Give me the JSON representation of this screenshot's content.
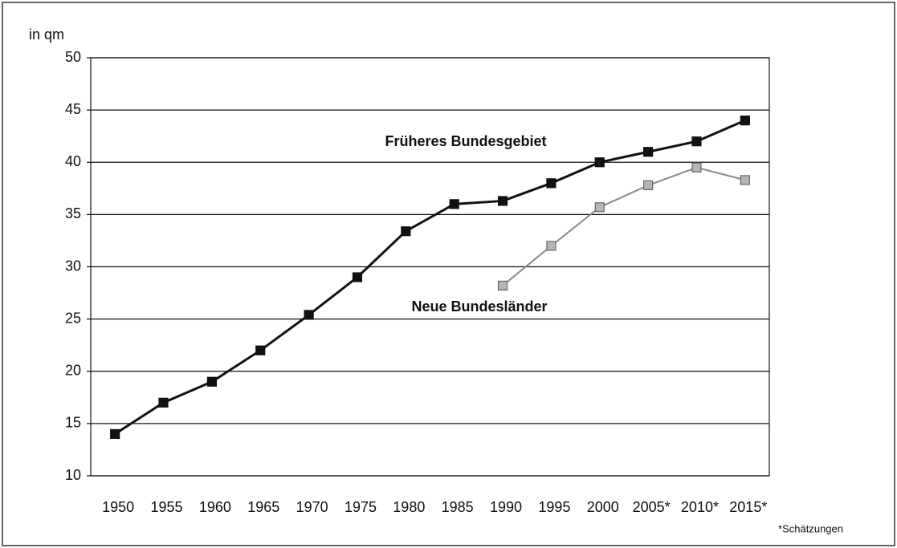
{
  "chart_data": {
    "type": "line",
    "y_label": "in qm",
    "categories": [
      "1950",
      "1955",
      "1960",
      "1965",
      "1970",
      "1975",
      "1980",
      "1985",
      "1990",
      "1995",
      "2000",
      "2005*",
      "2010*",
      "2015*"
    ],
    "series": [
      {
        "name": "Früheres Bundesgebiet",
        "color": "#111111",
        "values": [
          14,
          17,
          19,
          22,
          25.4,
          29,
          33.4,
          36,
          36.3,
          38,
          40,
          41,
          42,
          44
        ]
      },
      {
        "name": "Neue Bundesländer",
        "color": "#8a8a8a",
        "values": [
          null,
          null,
          null,
          null,
          null,
          null,
          null,
          null,
          28.2,
          32,
          35.7,
          37.8,
          39.5,
          38.3
        ]
      }
    ],
    "ylim": [
      10,
      50
    ],
    "yticks": [
      10,
      15,
      20,
      25,
      30,
      35,
      40,
      45,
      50
    ],
    "grid": true,
    "footnote": "*Schätzungen"
  }
}
